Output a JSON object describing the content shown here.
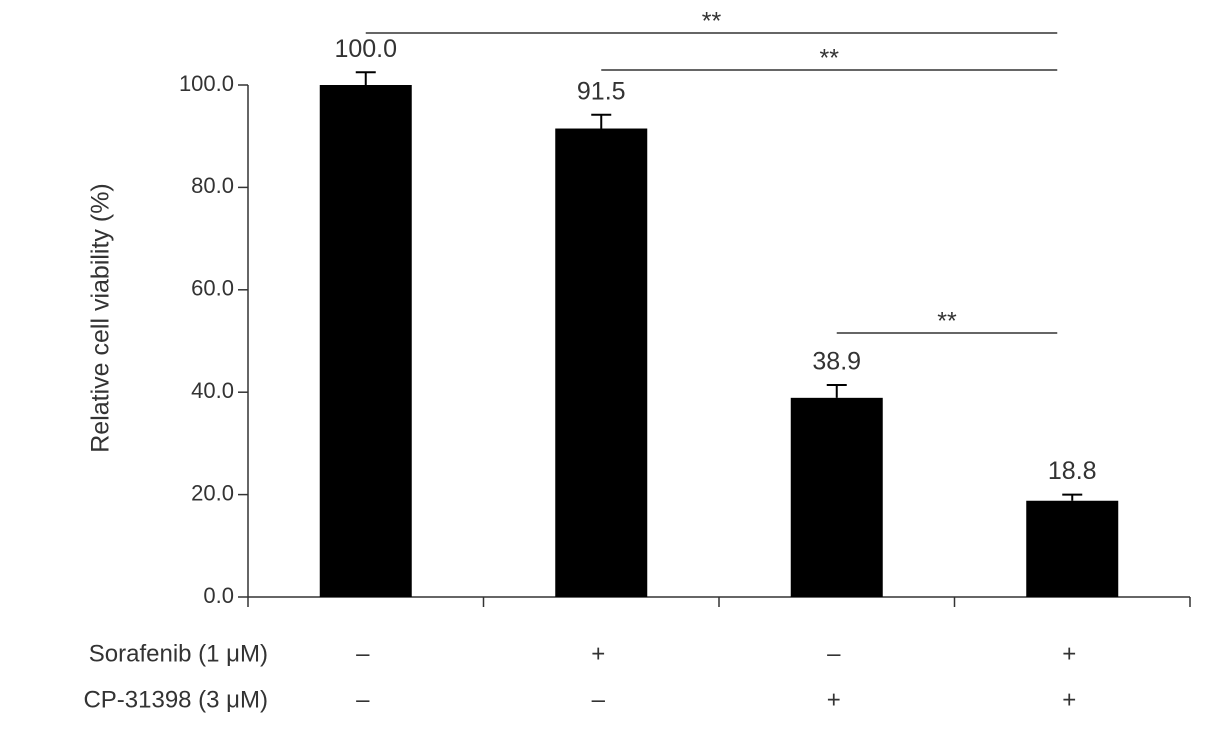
{
  "chart_data": {
    "type": "bar",
    "y_label": "Relative cell viability (%)",
    "categories": [
      null,
      null,
      null,
      null
    ],
    "values": [
      100,
      91.5,
      38.9,
      18.8
    ],
    "value_labels": [
      "100.0",
      "91.5",
      "38.9",
      "18.8"
    ],
    "errors": [
      2.5,
      2.7,
      2.5,
      1.2
    ],
    "color": "#000000",
    "ylim": [
      0,
      100
    ],
    "yticks": [
      {
        "value": 0,
        "label": "0.0"
      },
      {
        "value": 20,
        "label": "20.0"
      },
      {
        "value": 40,
        "label": "40.0"
      },
      {
        "value": 60,
        "label": "60.0"
      },
      {
        "value": 80,
        "label": "80.0"
      },
      {
        "value": 100,
        "label": "100.0"
      }
    ],
    "grid": false,
    "conditions": [
      {
        "name": "Sorafenib (1 μM)",
        "values": [
          "–",
          "+",
          "–",
          "+"
        ]
      },
      {
        "name": "CP-31398 (3 μM)",
        "values": [
          "–",
          "–",
          "+",
          "+"
        ]
      }
    ],
    "significance": [
      {
        "label": "**",
        "between": [
          0,
          3
        ]
      },
      {
        "label": "**",
        "between": [
          1,
          3
        ]
      },
      {
        "label": "**",
        "between": [
          2,
          3
        ]
      }
    ]
  }
}
